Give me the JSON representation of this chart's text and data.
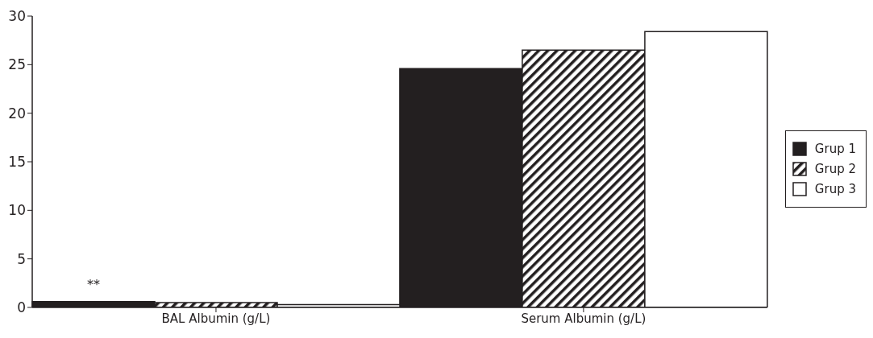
{
  "chart_data": {
    "type": "bar",
    "categories": [
      "BAL Albumin (g/L)",
      "Serum Albumin (g/L)"
    ],
    "series": [
      {
        "name": "Grup 1",
        "color": "#231f20",
        "values": [
          0.6,
          24.6
        ]
      },
      {
        "name": "Grup 2",
        "color": "#231f20",
        "values": [
          0.5,
          26.5
        ]
      },
      {
        "name": "Grup 3",
        "color": "#ffffff",
        "values": [
          0.3,
          28.4
        ]
      }
    ],
    "ylim": [
      0,
      30
    ],
    "yticks": [
      0,
      5,
      10,
      15,
      20,
      25,
      30
    ],
    "grid": false,
    "legend": "right",
    "annotations": [
      "**"
    ]
  }
}
